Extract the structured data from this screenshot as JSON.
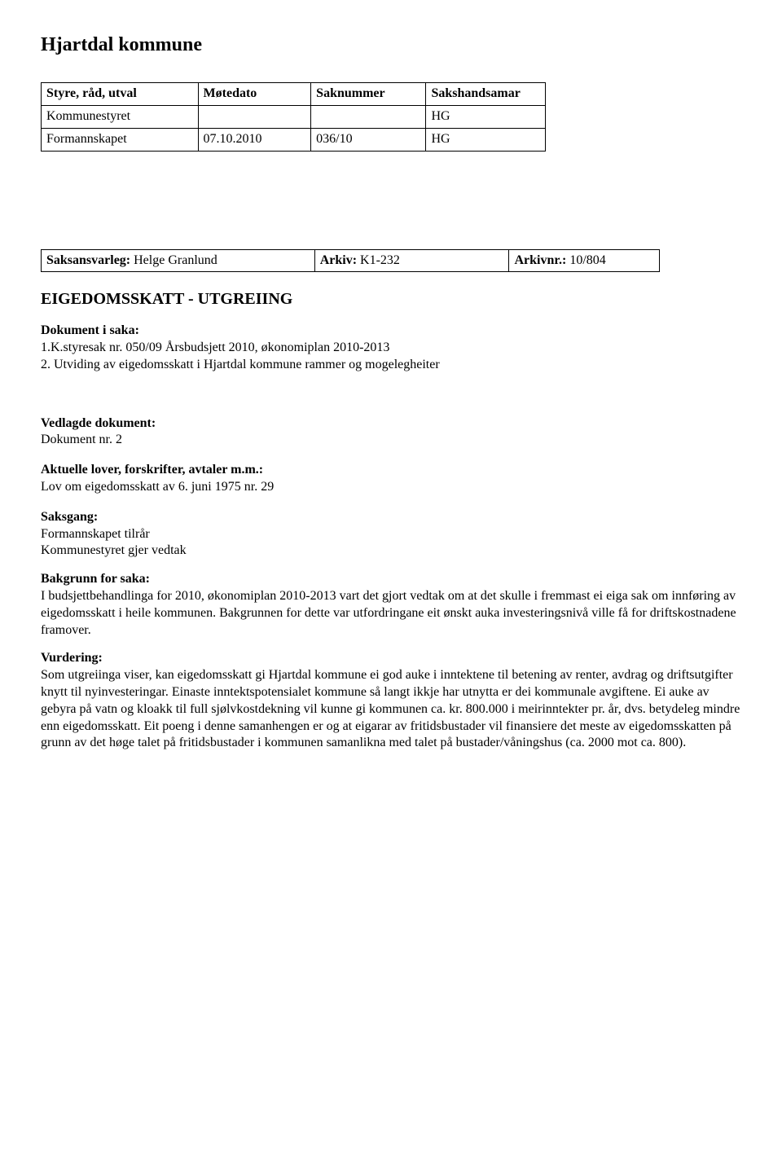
{
  "title": "Hjartdal kommune",
  "table1": {
    "headers": [
      "Styre, råd, utval",
      "Møtedato",
      "Saknummer",
      "Sakshandsamar"
    ],
    "rows": [
      [
        "Kommunestyret",
        "",
        "",
        "HG"
      ],
      [
        "Formannskapet",
        "07.10.2010",
        "036/10",
        "HG"
      ]
    ]
  },
  "table2": {
    "cells": [
      [
        "Saksansvarleg:",
        "Helge Granlund"
      ],
      [
        "Arkiv:",
        "K1-232"
      ],
      [
        "Arkivnr.:",
        "10/804"
      ]
    ]
  },
  "heading2": "EIGEDOMSSKATT - UTGREIING",
  "dokISaka": {
    "label": "Dokument i saka:",
    "items": [
      "1.K.styresak nr. 050/09 Årsbudsjett 2010, økonomiplan 2010-2013",
      "2. Utviding av eigedomsskatt i Hjartdal kommune rammer og mogelegheiter"
    ]
  },
  "vedlagde": {
    "label": "Vedlagde dokument:",
    "text": "Dokument nr. 2"
  },
  "aktuelle": {
    "label": "Aktuelle lover, forskrifter, avtaler m.m.:",
    "text": "Lov om eigedomsskatt av 6. juni 1975 nr. 29"
  },
  "saksgang": {
    "label": "Saksgang:",
    "lines": [
      "Formannskapet tilrår",
      "Kommunestyret gjer vedtak"
    ]
  },
  "bakgrunn": {
    "label": "Bakgrunn for saka:",
    "text": "I budsjettbehandlinga for 2010, økonomiplan 2010-2013 vart det gjort vedtak om at det skulle i fremmast ei eiga sak om innføring av eigedomsskatt i heile kommunen. Bakgrunnen for dette var utfordringane eit ønskt auka investeringsnivå ville få for driftskostnadene framover."
  },
  "vurdering": {
    "label": "Vurdering:",
    "text": " Som utgreiinga viser, kan eigedomsskatt gi Hjartdal kommune ei god auke i inntektene til betening av renter, avdrag og driftsutgifter knytt til nyinvesteringar. Einaste inntektspotensialet kommune så langt ikkje har utnytta er dei kommunale avgiftene. Ei auke av gebyra på vatn og kloakk til full sjølvkostdekning vil kunne gi kommunen ca. kr. 800.000 i meirinntekter pr. år, dvs. betydeleg mindre enn eigedomsskatt. Eit poeng i denne samanhengen er og at eigarar av fritidsbustader vil finansiere det meste av eigedomsskatten på grunn av det høge talet på fritidsbustader i kommunen samanlikna med talet på bustader/våningshus (ca. 2000 mot ca. 800)."
  }
}
